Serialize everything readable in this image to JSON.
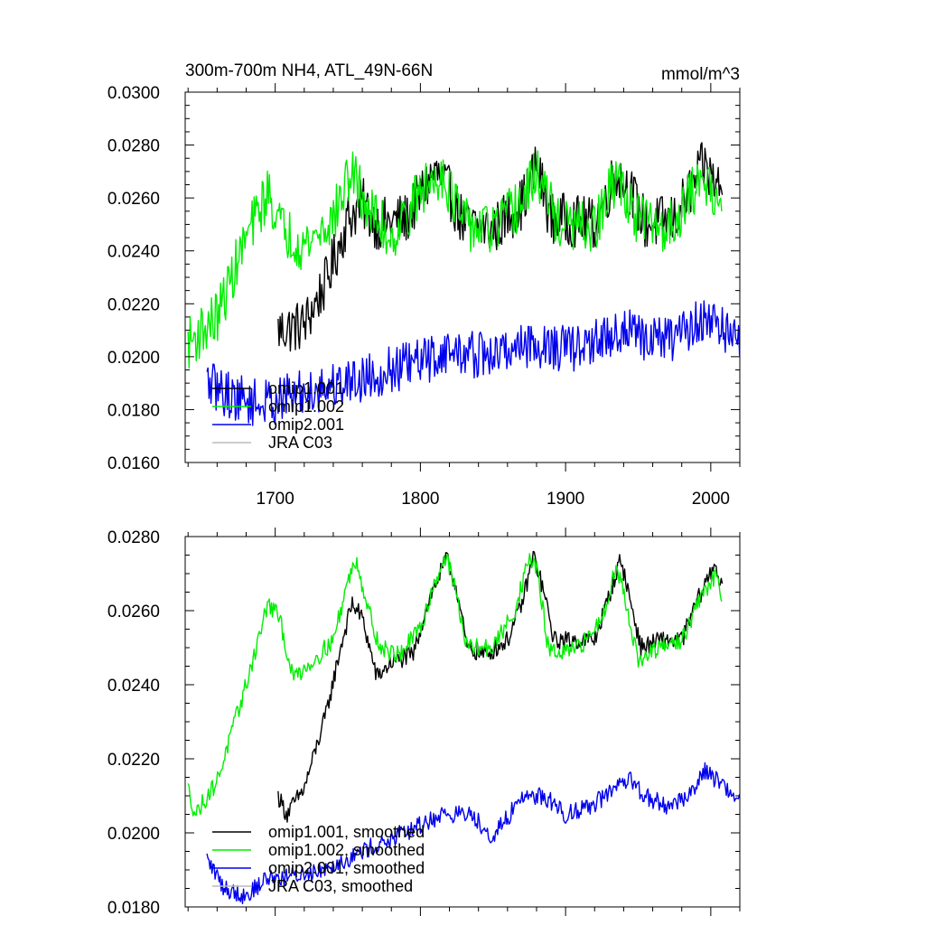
{
  "chart_data": [
    {
      "type": "line",
      "title": "300m-700m NH4, ATL_49N-66N",
      "units": "mmol/m^3",
      "xlabel": "",
      "ylabel": "",
      "xlim": [
        1638,
        2020
      ],
      "ylim": [
        0.016,
        0.03
      ],
      "x_ticks": [
        1700,
        1800,
        1900,
        2000
      ],
      "x_tick_labels": [
        "1700",
        "1800",
        "1900",
        "2000"
      ],
      "y_ticks": [
        0.016,
        0.018,
        0.02,
        0.022,
        0.024,
        0.026,
        0.028,
        0.03
      ],
      "y_tick_labels": [
        "0.0160",
        "0.0180",
        "0.0200",
        "0.0220",
        "0.0240",
        "0.0260",
        "0.0280",
        "0.0300"
      ],
      "legend_position": "bottom-left",
      "series": [
        {
          "name": "omip1.001",
          "color": "#000000",
          "x_start": 1702,
          "x_end": 2008,
          "noise": 0.001,
          "anchors": [
            [
              1702,
              0.021
            ],
            [
              1720,
              0.0212
            ],
            [
              1735,
              0.0228
            ],
            [
              1750,
              0.0252
            ],
            [
              1760,
              0.0258
            ],
            [
              1770,
              0.025
            ],
            [
              1790,
              0.0252
            ],
            [
              1810,
              0.027
            ],
            [
              1820,
              0.0262
            ],
            [
              1830,
              0.025
            ],
            [
              1850,
              0.0248
            ],
            [
              1870,
              0.0258
            ],
            [
              1880,
              0.0272
            ],
            [
              1890,
              0.0252
            ],
            [
              1900,
              0.0252
            ],
            [
              1920,
              0.025
            ],
            [
              1935,
              0.027
            ],
            [
              1945,
              0.0262
            ],
            [
              1955,
              0.025
            ],
            [
              1975,
              0.0252
            ],
            [
              1995,
              0.0272
            ],
            [
              2008,
              0.0262
            ]
          ]
        },
        {
          "name": "omip1.002",
          "color": "#00ee00",
          "x_start": 1640,
          "x_end": 2008,
          "noise": 0.001,
          "anchors": [
            [
              1640,
              0.0205
            ],
            [
              1660,
              0.0215
            ],
            [
              1680,
              0.0245
            ],
            [
              1695,
              0.0262
            ],
            [
              1705,
              0.0248
            ],
            [
              1720,
              0.0242
            ],
            [
              1740,
              0.0252
            ],
            [
              1752,
              0.027
            ],
            [
              1765,
              0.0255
            ],
            [
              1780,
              0.0245
            ],
            [
              1800,
              0.0262
            ],
            [
              1815,
              0.027
            ],
            [
              1830,
              0.025
            ],
            [
              1850,
              0.0248
            ],
            [
              1870,
              0.0258
            ],
            [
              1880,
              0.027
            ],
            [
              1895,
              0.025
            ],
            [
              1920,
              0.0248
            ],
            [
              1935,
              0.0268
            ],
            [
              1950,
              0.0252
            ],
            [
              1970,
              0.0248
            ],
            [
              1995,
              0.0268
            ],
            [
              2008,
              0.0258
            ]
          ]
        },
        {
          "name": "omip2.001",
          "color": "#0000ee",
          "x_start": 1653,
          "x_end": 2020,
          "noise": 0.0009,
          "anchors": [
            [
              1653,
              0.019
            ],
            [
              1670,
              0.0185
            ],
            [
              1690,
              0.0182
            ],
            [
              1710,
              0.0185
            ],
            [
              1730,
              0.0188
            ],
            [
              1760,
              0.0192
            ],
            [
              1800,
              0.0198
            ],
            [
              1820,
              0.0202
            ],
            [
              1850,
              0.02
            ],
            [
              1870,
              0.0205
            ],
            [
              1900,
              0.0203
            ],
            [
              1920,
              0.0205
            ],
            [
              1940,
              0.021
            ],
            [
              1960,
              0.0206
            ],
            [
              1980,
              0.0208
            ],
            [
              1995,
              0.0215
            ],
            [
              2020,
              0.0206
            ]
          ]
        },
        {
          "name": "JRA C03",
          "color": "#bbbbbb",
          "x_start": null,
          "x_end": null,
          "noise": 0,
          "anchors": []
        }
      ]
    },
    {
      "type": "line",
      "title": "",
      "xlabel": "",
      "ylabel": "",
      "xlim": [
        1638,
        2020
      ],
      "ylim": [
        0.018,
        0.028
      ],
      "x_ticks": [
        1700,
        1800,
        1900,
        2000
      ],
      "x_tick_labels": [],
      "y_ticks": [
        0.018,
        0.02,
        0.022,
        0.024,
        0.026,
        0.028
      ],
      "y_tick_labels": [
        "0.0180",
        "0.0200",
        "0.0220",
        "0.0240",
        "0.0260",
        "0.0280"
      ],
      "legend_position": "bottom-left",
      "series": [
        {
          "name": "omip1.001, smoothed",
          "color": "#000000",
          "x_start": 1702,
          "x_end": 2008,
          "noise": 0.00025,
          "anchors": [
            [
              1702,
              0.021
            ],
            [
              1708,
              0.0205
            ],
            [
              1720,
              0.0212
            ],
            [
              1735,
              0.0232
            ],
            [
              1745,
              0.025
            ],
            [
              1753,
              0.0262
            ],
            [
              1760,
              0.0258
            ],
            [
              1770,
              0.0242
            ],
            [
              1780,
              0.0246
            ],
            [
              1795,
              0.0248
            ],
            [
              1805,
              0.0262
            ],
            [
              1818,
              0.0274
            ],
            [
              1825,
              0.0266
            ],
            [
              1832,
              0.025
            ],
            [
              1845,
              0.0248
            ],
            [
              1860,
              0.0252
            ],
            [
              1870,
              0.0262
            ],
            [
              1878,
              0.0275
            ],
            [
              1885,
              0.0265
            ],
            [
              1892,
              0.0252
            ],
            [
              1905,
              0.0252
            ],
            [
              1920,
              0.0252
            ],
            [
              1930,
              0.0264
            ],
            [
              1938,
              0.0274
            ],
            [
              1945,
              0.0262
            ],
            [
              1952,
              0.025
            ],
            [
              1965,
              0.0252
            ],
            [
              1980,
              0.0252
            ],
            [
              1990,
              0.0262
            ],
            [
              2003,
              0.0273
            ],
            [
              2008,
              0.0265
            ]
          ]
        },
        {
          "name": "omip1.002, smoothed",
          "color": "#00ee00",
          "x_start": 1640,
          "x_end": 2008,
          "noise": 0.00025,
          "anchors": [
            [
              1640,
              0.0212
            ],
            [
              1645,
              0.0205
            ],
            [
              1660,
              0.0214
            ],
            [
              1680,
              0.024
            ],
            [
              1695,
              0.0262
            ],
            [
              1703,
              0.0258
            ],
            [
              1712,
              0.0242
            ],
            [
              1725,
              0.0246
            ],
            [
              1740,
              0.0252
            ],
            [
              1750,
              0.0268
            ],
            [
              1756,
              0.0274
            ],
            [
              1763,
              0.0262
            ],
            [
              1772,
              0.025
            ],
            [
              1785,
              0.0248
            ],
            [
              1800,
              0.0255
            ],
            [
              1810,
              0.0268
            ],
            [
              1818,
              0.0275
            ],
            [
              1825,
              0.0264
            ],
            [
              1832,
              0.025
            ],
            [
              1850,
              0.025
            ],
            [
              1865,
              0.026
            ],
            [
              1875,
              0.0274
            ],
            [
              1880,
              0.0272
            ],
            [
              1888,
              0.025
            ],
            [
              1895,
              0.0248
            ],
            [
              1910,
              0.025
            ],
            [
              1925,
              0.0258
            ],
            [
              1935,
              0.0272
            ],
            [
              1942,
              0.0262
            ],
            [
              1950,
              0.0246
            ],
            [
              1965,
              0.025
            ],
            [
              1980,
              0.0252
            ],
            [
              1995,
              0.0265
            ],
            [
              2005,
              0.027
            ],
            [
              2008,
              0.0262
            ]
          ]
        },
        {
          "name": "omip2.001, smoothed",
          "color": "#0000ee",
          "x_start": 1653,
          "x_end": 2020,
          "noise": 0.00025,
          "anchors": [
            [
              1653,
              0.0193
            ],
            [
              1665,
              0.0185
            ],
            [
              1680,
              0.0183
            ],
            [
              1695,
              0.0188
            ],
            [
              1710,
              0.0188
            ],
            [
              1730,
              0.019
            ],
            [
              1750,
              0.0193
            ],
            [
              1765,
              0.0196
            ],
            [
              1780,
              0.0198
            ],
            [
              1800,
              0.0202
            ],
            [
              1815,
              0.0205
            ],
            [
              1835,
              0.0205
            ],
            [
              1850,
              0.0199
            ],
            [
              1860,
              0.0204
            ],
            [
              1870,
              0.021
            ],
            [
              1885,
              0.021
            ],
            [
              1900,
              0.0205
            ],
            [
              1920,
              0.0208
            ],
            [
              1935,
              0.0212
            ],
            [
              1945,
              0.0214
            ],
            [
              1955,
              0.021
            ],
            [
              1970,
              0.0207
            ],
            [
              1985,
              0.021
            ],
            [
              1995,
              0.0217
            ],
            [
              2005,
              0.0214
            ],
            [
              2020,
              0.0209
            ]
          ]
        },
        {
          "name": "JRA C03, smoothed",
          "color": "#bbbbbb",
          "x_start": null,
          "x_end": null,
          "noise": 0,
          "anchors": []
        }
      ]
    }
  ]
}
